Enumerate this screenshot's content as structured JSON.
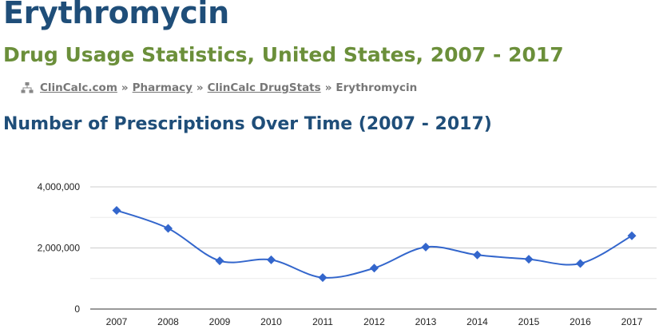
{
  "page": {
    "drug_name": "Erythromycin",
    "subtitle": "Drug Usage Statistics, United States, 2007 - 2017",
    "section_heading": "Number of Prescriptions Over Time (2007 - 2017)"
  },
  "breadcrumb": {
    "items": [
      {
        "label": "ClinCalc.com",
        "link": true
      },
      {
        "label": "Pharmacy",
        "link": true
      },
      {
        "label": "ClinCalc DrugStats",
        "link": true
      },
      {
        "label": "Erythromycin",
        "link": false
      }
    ],
    "separator": "»",
    "icon": "sitemap-icon"
  },
  "colors": {
    "title": "#1f4e79",
    "subtitle": "#6b8f3a",
    "line": "#3366cc"
  },
  "chart_data": {
    "type": "line",
    "categories": [
      "2007",
      "2008",
      "2009",
      "2010",
      "2011",
      "2012",
      "2013",
      "2014",
      "2015",
      "2016",
      "2017"
    ],
    "values": [
      3230000,
      2640000,
      1580000,
      1610000,
      1030000,
      1340000,
      2030000,
      1770000,
      1630000,
      1490000,
      2400000
    ],
    "yticks": [
      0,
      2000000,
      4000000
    ],
    "ytick_labels": [
      "0",
      "2,000,000",
      "4,000,000"
    ],
    "ylim": [
      0,
      4000000
    ],
    "title": "",
    "xlabel": "",
    "ylabel": "",
    "grid": true,
    "smooth": true,
    "marker": "diamond"
  }
}
